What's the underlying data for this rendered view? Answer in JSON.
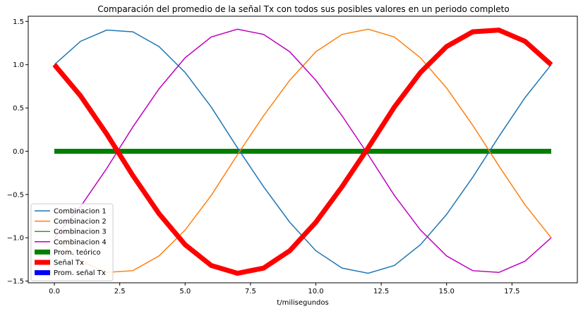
{
  "chart_data": {
    "type": "line",
    "title": "Comparación del promedio de la señal Tx con todos sus posibles valores en un periodo completo",
    "xlabel": "t/milisegundos",
    "ylabel": "",
    "xlim": [
      -1.0,
      20.0
    ],
    "ylim": [
      -1.52,
      1.56
    ],
    "xticks": [
      0.0,
      2.5,
      5.0,
      7.5,
      10.0,
      12.5,
      15.0,
      17.5
    ],
    "xtick_labels": [
      "0.0",
      "2.5",
      "5.0",
      "7.5",
      "10.0",
      "12.5",
      "15.0",
      "17.5"
    ],
    "yticks": [
      -1.5,
      -1.0,
      -0.5,
      0.0,
      0.5,
      1.0,
      1.5
    ],
    "ytick_labels": [
      "−1.5",
      "−1.0",
      "−0.5",
      "0.0",
      "0.5",
      "1.0",
      "1.5"
    ],
    "grid": false,
    "legend_position": "lower-left",
    "x": [
      0,
      1,
      2,
      3,
      4,
      5,
      6,
      7,
      8,
      9,
      10,
      11,
      12,
      13,
      14,
      15,
      16,
      17,
      18,
      19
    ],
    "series": [
      {
        "name": "Combinacion 1",
        "color": "#1f77b4",
        "width": 1.5,
        "values": [
          1.0,
          1.27,
          1.4,
          1.38,
          1.21,
          0.91,
          0.51,
          0.04,
          -0.41,
          -0.82,
          -1.15,
          -1.35,
          -1.41,
          -1.32,
          -1.08,
          -0.73,
          -0.3,
          0.17,
          0.62,
          1.0
        ]
      },
      {
        "name": "Combinacion 2",
        "color": "#ff7f0e",
        "width": 1.5,
        "values": [
          -1.0,
          -1.27,
          -1.4,
          -1.38,
          -1.21,
          -0.91,
          -0.51,
          -0.04,
          0.41,
          0.82,
          1.15,
          1.35,
          1.41,
          1.32,
          1.08,
          0.73,
          0.3,
          -0.17,
          -0.62,
          -1.0
        ]
      },
      {
        "name": "Combinacion 3",
        "color": "#2ca02c",
        "width": 1.5,
        "values": [
          1.0,
          0.64,
          0.2,
          -0.28,
          -0.72,
          -1.08,
          -1.32,
          -1.41,
          -1.35,
          -1.15,
          -0.82,
          -0.41,
          0.04,
          0.51,
          0.91,
          1.21,
          1.38,
          1.4,
          1.27,
          1.0
        ]
      },
      {
        "name": "Combinacion 4",
        "color": "#bf00bf",
        "width": 1.5,
        "values": [
          -1.0,
          -0.64,
          -0.2,
          0.28,
          0.72,
          1.08,
          1.32,
          1.41,
          1.35,
          1.15,
          0.82,
          0.41,
          -0.04,
          -0.51,
          -0.91,
          -1.21,
          -1.38,
          -1.4,
          -1.27,
          -1.0
        ]
      },
      {
        "name": "Prom. teórico",
        "color": "#008000",
        "width": 7,
        "values": [
          0,
          0,
          0,
          0,
          0,
          0,
          0,
          0,
          0,
          0,
          0,
          0,
          0,
          0,
          0,
          0,
          0,
          0,
          0,
          0
        ]
      },
      {
        "name": "Señal Tx",
        "color": "#ff0000",
        "width": 7,
        "values": [
          1.0,
          0.64,
          0.2,
          -0.28,
          -0.72,
          -1.08,
          -1.32,
          -1.41,
          -1.35,
          -1.15,
          -0.82,
          -0.41,
          0.04,
          0.51,
          0.91,
          1.21,
          1.38,
          1.4,
          1.27,
          1.0
        ]
      },
      {
        "name": "Prom. señal Tx",
        "color": "#0000ff",
        "width": 7,
        "values": [
          0,
          0,
          0,
          0,
          0,
          0,
          0,
          0,
          0,
          0,
          0,
          0,
          0,
          0,
          0,
          0,
          0,
          0,
          0,
          0
        ]
      }
    ],
    "draw_order": [
      6,
      4,
      0,
      1,
      2,
      3,
      5
    ]
  }
}
